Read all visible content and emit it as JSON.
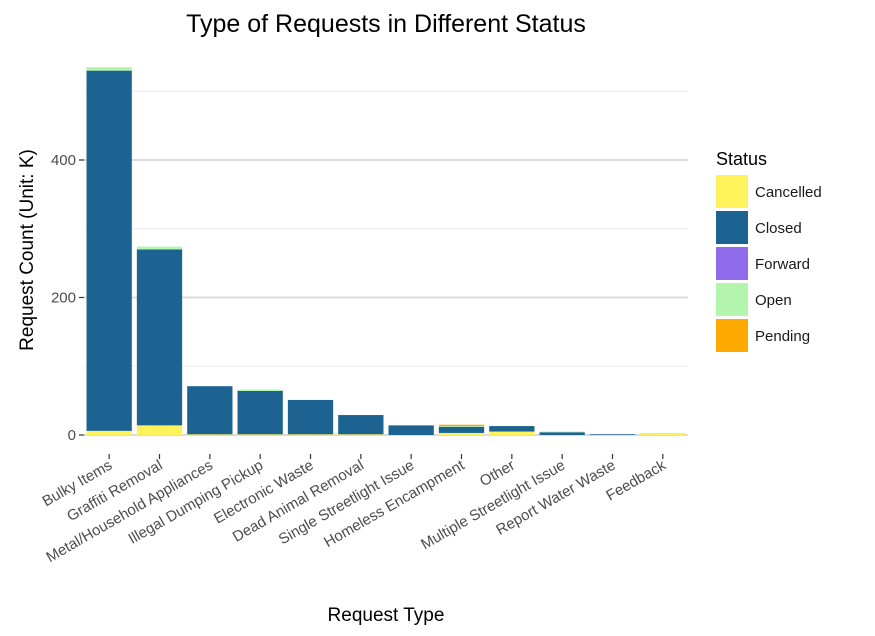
{
  "chart_data": {
    "type": "bar",
    "stacked": true,
    "title": "Type of Requests in Different Status",
    "xlabel": "Request Type",
    "ylabel": "Request Count (Unit: K)",
    "ylim": [
      0,
      550
    ],
    "yticks": [
      0,
      200,
      400
    ],
    "grid": true,
    "legend_title": "Status",
    "legend_position": "right",
    "categories": [
      "Bulky Items",
      "Graffiti Removal",
      "Metal/Household Appliances",
      "Illegal Dumping Pickup",
      "Electronic Waste",
      "Dead Animal Removal",
      "Single Streetlight Issue",
      "Homeless Encampment",
      "Other",
      "Multiple Streetlight Issue",
      "Report Water Waste",
      "Feedback"
    ],
    "series": [
      {
        "name": "Cancelled",
        "color": "#FFF25A",
        "values": [
          6,
          14,
          1,
          1,
          1,
          1,
          0,
          3,
          5,
          0,
          0,
          2
        ]
      },
      {
        "name": "Closed",
        "color": "#1C6391",
        "values": [
          524,
          256,
          70,
          63,
          50,
          28,
          14,
          9,
          8,
          4,
          1,
          0
        ]
      },
      {
        "name": "Forward",
        "color": "#8E6CEB",
        "values": [
          0,
          0,
          0,
          0,
          0,
          0,
          0,
          0,
          0,
          0,
          0,
          0
        ]
      },
      {
        "name": "Open",
        "color": "#B3F5AC",
        "values": [
          5,
          4,
          0,
          2,
          0,
          0,
          0,
          1,
          0,
          1,
          0,
          1
        ]
      },
      {
        "name": "Pending",
        "color": "#FFAA00",
        "values": [
          0,
          0,
          0,
          0,
          0,
          0,
          0,
          2,
          0,
          0,
          0,
          0
        ]
      }
    ]
  }
}
